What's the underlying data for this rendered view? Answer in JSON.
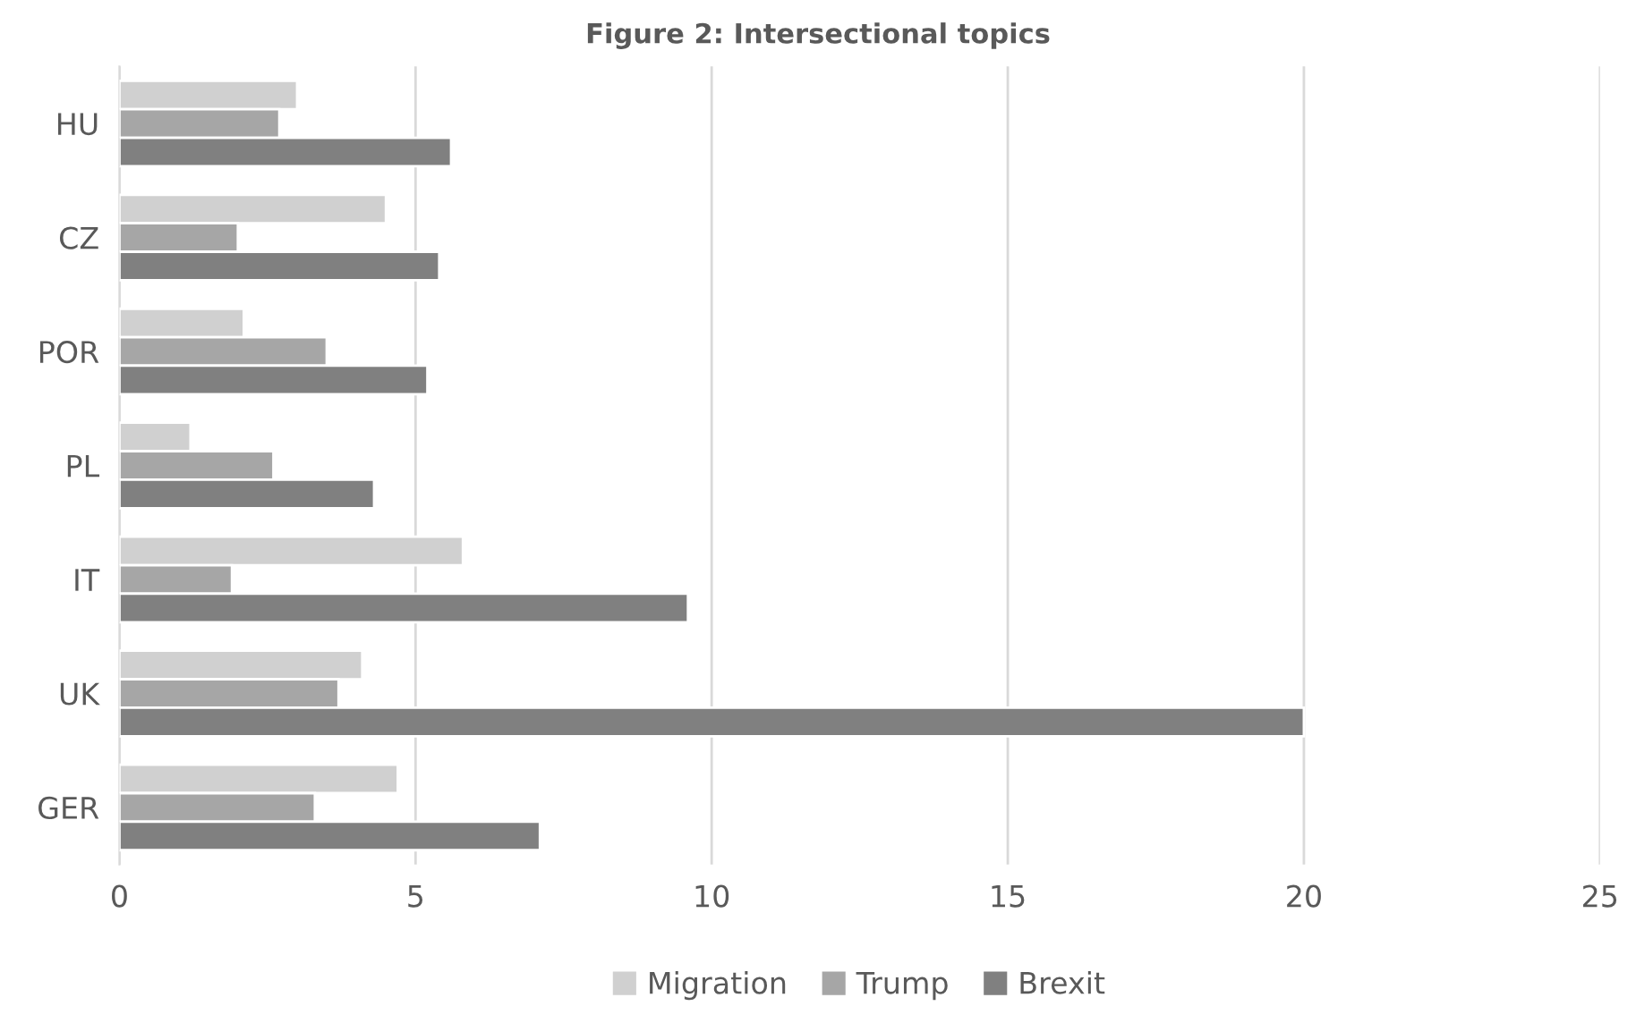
{
  "chart_data": {
    "type": "bar",
    "orientation": "horizontal",
    "title": "Figure 2: Intersectional topics",
    "categories": [
      "HU",
      "CZ",
      "POR",
      "PL",
      "IT",
      "UK",
      "GER"
    ],
    "series": [
      {
        "name": "Migration",
        "color": "#d0d0d0",
        "values": [
          3.0,
          4.5,
          2.1,
          1.2,
          5.8,
          4.1,
          4.7
        ]
      },
      {
        "name": "Trump",
        "color": "#a6a6a6",
        "values": [
          2.7,
          2.0,
          3.5,
          2.6,
          1.9,
          3.7,
          3.3
        ]
      },
      {
        "name": "Brexit",
        "color": "#808080",
        "values": [
          5.6,
          5.4,
          5.2,
          4.3,
          9.6,
          20.0,
          7.1
        ]
      }
    ],
    "xlim": [
      0,
      25
    ],
    "xticks": [
      0,
      5,
      10,
      15,
      20,
      25
    ],
    "grid": "x",
    "legend": "bottom"
  }
}
